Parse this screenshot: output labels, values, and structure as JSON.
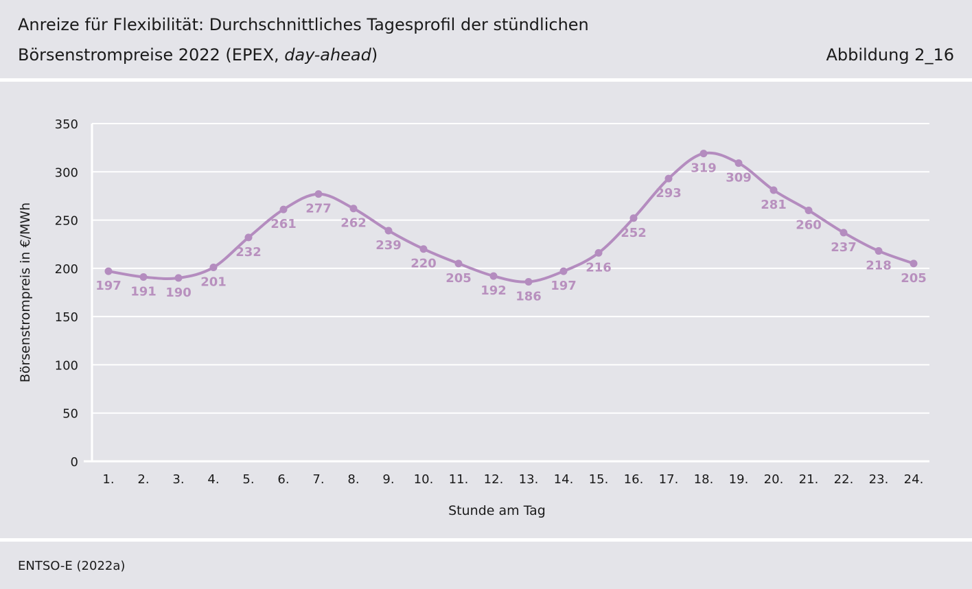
{
  "header": {
    "title_line1": "Anreize für Flexibilität: Durchschnittliches Tagesprofil der stündlichen",
    "title_line2_prefix": "Börsenstrompreise 2022 (EPEX, ",
    "title_line2_italic": "day-ahead",
    "title_line2_suffix": ")",
    "figure_label": "Abbildung 2_16"
  },
  "footer": {
    "source": "ENTSO-E (2022a)"
  },
  "colors": {
    "line": "#b48cbf",
    "label": "#b890be",
    "grid": "#ffffff",
    "background": "#e4e4e9"
  },
  "chart_data": {
    "type": "line",
    "categories": [
      "1.",
      "2.",
      "3.",
      "4.",
      "5.",
      "6.",
      "7.",
      "8.",
      "9.",
      "10.",
      "11.",
      "12.",
      "13.",
      "14.",
      "15.",
      "16.",
      "17.",
      "18.",
      "19.",
      "20.",
      "21.",
      "22.",
      "23.",
      "24."
    ],
    "values": [
      197,
      191,
      190,
      201,
      232,
      261,
      277,
      262,
      239,
      220,
      205,
      192,
      186,
      197,
      216,
      252,
      293,
      319,
      309,
      281,
      260,
      237,
      218,
      205
    ],
    "xlabel": "Stunde am Tag",
    "ylabel": "Börsenstrompreis in €/MWh",
    "ylim": [
      0,
      350
    ],
    "yticks": [
      0,
      50,
      100,
      150,
      200,
      250,
      300,
      350
    ],
    "grid": true,
    "smooth": true,
    "data_labels": true,
    "legend": "none"
  }
}
